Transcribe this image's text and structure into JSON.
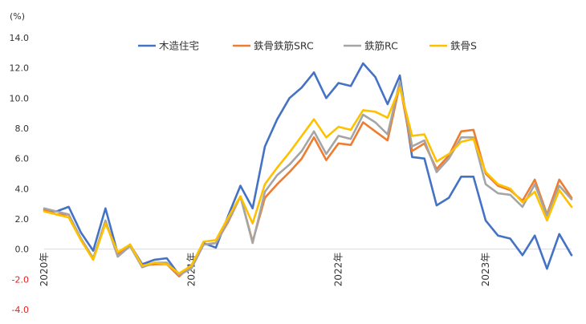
{
  "chart_data": {
    "type": "line",
    "y_unit": "(%)",
    "ylim": [
      -4.0,
      14.0
    ],
    "y_ticks": [
      "14.0",
      "12.0",
      "10.0",
      "8.0",
      "6.0",
      "4.0",
      "2.0",
      "0.0",
      "-2.0",
      "-4.0"
    ],
    "negative_tick_color": "#e8201c",
    "grid": false,
    "legend_position": "top",
    "x_labels": [
      {
        "index": 0,
        "label": "2020年"
      },
      {
        "index": 12,
        "label": "2021年"
      },
      {
        "index": 24,
        "label": "2022年"
      },
      {
        "index": 36,
        "label": "2023年"
      }
    ],
    "series": [
      {
        "name": "木造住宅",
        "color": "#4472c4",
        "values": [
          2.6,
          2.5,
          2.8,
          1.1,
          -0.1,
          2.7,
          -0.3,
          0.3,
          -1.0,
          -0.7,
          -0.6,
          -1.7,
          -1.1,
          0.4,
          0.1,
          2.2,
          4.2,
          2.7,
          6.8,
          8.6,
          10.0,
          10.7,
          11.7,
          10.0,
          11.0,
          10.8,
          12.3,
          11.4,
          9.6,
          11.5,
          6.1,
          6.0,
          2.9,
          3.4,
          4.8,
          4.8,
          1.9,
          0.9,
          0.7,
          -0.4,
          0.9,
          -1.3,
          1.0,
          -0.4
        ]
      },
      {
        "name": "鉄骨鉄筋SRC",
        "color": "#ed7d31",
        "values": [
          2.6,
          2.3,
          2.3,
          0.7,
          -0.6,
          1.8,
          -0.3,
          0.3,
          -1.1,
          -1.0,
          -1.0,
          -1.8,
          -1.1,
          0.3,
          0.4,
          1.8,
          3.5,
          0.5,
          3.4,
          4.3,
          5.1,
          6.0,
          7.4,
          5.9,
          7.0,
          6.9,
          8.4,
          7.8,
          7.2,
          10.9,
          6.5,
          7.0,
          5.3,
          6.2,
          7.8,
          7.9,
          5.0,
          4.2,
          3.9,
          3.2,
          4.6,
          2.3,
          4.6,
          3.4
        ]
      },
      {
        "name": "鉄筋RC",
        "color": "#a5a5a5",
        "values": [
          2.7,
          2.5,
          2.3,
          0.7,
          -0.6,
          1.9,
          -0.5,
          0.2,
          -1.2,
          -0.9,
          -0.9,
          -1.7,
          -1.3,
          0.3,
          0.4,
          1.9,
          3.5,
          0.4,
          3.8,
          4.9,
          5.6,
          6.5,
          7.8,
          6.3,
          7.5,
          7.3,
          8.9,
          8.4,
          7.6,
          11.1,
          6.8,
          7.2,
          5.1,
          6.0,
          7.4,
          7.4,
          4.3,
          3.7,
          3.6,
          2.8,
          4.3,
          2.2,
          4.2,
          3.3
        ]
      },
      {
        "name": "鉄骨S",
        "color": "#ffc000",
        "values": [
          2.5,
          2.3,
          2.1,
          0.6,
          -0.7,
          1.7,
          -0.2,
          0.3,
          -1.1,
          -0.9,
          -1.0,
          -1.6,
          -1.1,
          0.5,
          0.6,
          2.1,
          3.5,
          1.7,
          4.3,
          5.4,
          6.4,
          7.5,
          8.6,
          7.4,
          8.1,
          7.9,
          9.2,
          9.1,
          8.7,
          10.7,
          7.5,
          7.6,
          5.8,
          6.3,
          7.1,
          7.3,
          5.1,
          4.3,
          4.0,
          3.1,
          3.8,
          1.9,
          3.9,
          2.8
        ]
      }
    ]
  }
}
